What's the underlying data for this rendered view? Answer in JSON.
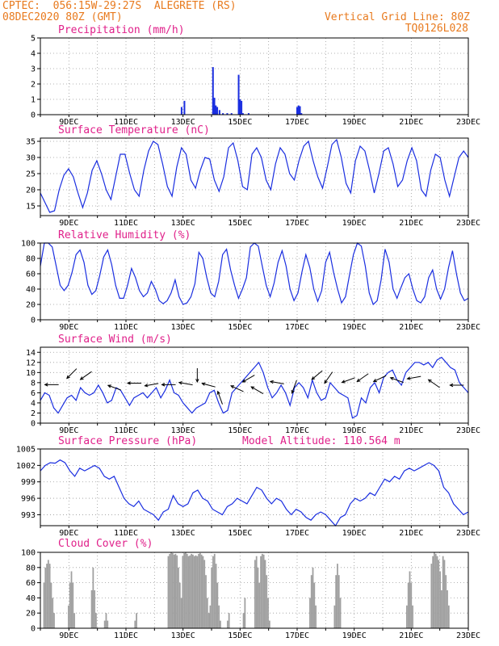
{
  "header": {
    "line1": "CPTEC:  056:15W-29:27S  ALEGRETE (RS)",
    "line2": "08DEC2020 80Z (GMT)",
    "right1": "Vertical Grid Line: 80Z",
    "right2": "TQ0126L028",
    "color": "#e87a1e"
  },
  "colors": {
    "title": "#e0208a",
    "series": "#1a2ee0",
    "cloud": "#a0a0a0",
    "grid": "#9a9a9a",
    "wind": "#000000"
  },
  "chart_data": [
    {
      "id": "precip",
      "type": "bar",
      "title": "Precipitation (mm/h)",
      "xlim": [
        0,
        15
      ],
      "ylim": [
        0,
        5
      ],
      "yticks": [
        "0",
        "1",
        "2",
        "3",
        "4",
        "5"
      ],
      "xticks": [
        "9DEC",
        "11DEC",
        "13DEC",
        "15DEC",
        "17DEC",
        "19DEC",
        "21DEC",
        "23DEC"
      ],
      "x": [
        4.95,
        5.05,
        6.05,
        6.1,
        6.15,
        6.2,
        6.28,
        6.4,
        6.55,
        6.7,
        6.95,
        7.0,
        7.05,
        7.1,
        7.3,
        9.0,
        9.05,
        9.1,
        9.15
      ],
      "values": [
        0.5,
        0.9,
        3.1,
        1.1,
        0.6,
        0.5,
        0.3,
        0.1,
        0.1,
        0.1,
        2.6,
        1.0,
        0.9,
        0.1,
        0.1,
        0.5,
        0.6,
        0.55,
        0.1
      ]
    },
    {
      "id": "temp",
      "type": "line",
      "title": "Surface Temperature (nC)",
      "xlim": [
        0,
        15
      ],
      "ylim": [
        12,
        36
      ],
      "yticks": [
        "15",
        "20",
        "25",
        "30",
        "35"
      ],
      "xticks": [
        "9DEC",
        "11DEC",
        "13DEC",
        "15DEC",
        "17DEC",
        "19DEC",
        "21DEC",
        "23DEC"
      ],
      "series": [
        {
          "values": [
            19,
            16,
            13,
            13.5,
            20,
            24.5,
            26.5,
            24,
            19,
            14.5,
            19,
            26,
            29,
            25,
            20,
            17,
            24,
            31,
            31,
            25,
            20,
            18,
            26,
            32,
            35,
            34,
            28,
            21,
            18,
            27,
            33,
            31,
            23,
            20.5,
            26,
            30,
            29.5,
            23,
            19.5,
            24,
            33,
            34.5,
            29,
            21,
            20,
            31,
            33,
            30,
            23,
            20,
            28,
            33,
            31,
            25,
            23,
            29,
            33.5,
            35,
            29,
            24,
            20.5,
            27,
            34,
            35.5,
            30,
            22,
            19,
            29,
            33.5,
            32,
            26,
            19,
            25,
            32,
            33,
            28,
            21,
            23,
            29,
            33,
            29,
            20,
            18,
            26,
            31,
            30,
            23,
            18,
            24,
            30,
            32,
            30
          ]
        }
      ]
    },
    {
      "id": "rh",
      "type": "line",
      "title": "Relative Humidity (%)",
      "xlim": [
        0,
        15
      ],
      "ylim": [
        0,
        100
      ],
      "yticks": [
        "0",
        "20",
        "40",
        "60",
        "80",
        "100"
      ],
      "xticks": [
        "9DEC",
        "11DEC",
        "13DEC",
        "15DEC",
        "17DEC",
        "19DEC",
        "21DEC",
        "23DEC"
      ],
      "series": [
        {
          "values": [
            70,
            100,
            100,
            95,
            70,
            45,
            38,
            45,
            62,
            85,
            91,
            75,
            45,
            33,
            38,
            58,
            82,
            91,
            72,
            45,
            28,
            28,
            45,
            67,
            55,
            38,
            30,
            35,
            50,
            40,
            25,
            21,
            25,
            35,
            52,
            30,
            20,
            22,
            30,
            47,
            88,
            80,
            55,
            35,
            30,
            50,
            85,
            92,
            65,
            45,
            28,
            40,
            55,
            95,
            100,
            96,
            70,
            45,
            30,
            48,
            75,
            90,
            70,
            40,
            25,
            35,
            62,
            85,
            68,
            40,
            24,
            38,
            75,
            88,
            62,
            40,
            22,
            30,
            58,
            85,
            100,
            96,
            70,
            35,
            20,
            25,
            52,
            92,
            75,
            40,
            28,
            42,
            55,
            60,
            40,
            25,
            22,
            30,
            55,
            65,
            40,
            27,
            40,
            68,
            90,
            60,
            35,
            25,
            28
          ]
        }
      ]
    },
    {
      "id": "wind",
      "type": "line",
      "title": "Surface Wind (m/s)",
      "xlim": [
        0,
        15
      ],
      "ylim": [
        0,
        15
      ],
      "yticks": [
        "0",
        "2",
        "4",
        "6",
        "8",
        "10",
        "12",
        "14"
      ],
      "xticks": [
        "9DEC",
        "11DEC",
        "13DEC",
        "15DEC",
        "17DEC",
        "19DEC",
        "21DEC",
        "23DEC"
      ],
      "series": [
        {
          "values": [
            4.5,
            6,
            5.5,
            3,
            2,
            3.5,
            5,
            5.5,
            4.5,
            7,
            6,
            5.5,
            6,
            7.5,
            6,
            4,
            4.5,
            7,
            6.5,
            5,
            3.5,
            5,
            5.5,
            6,
            5,
            6,
            7,
            5,
            6.5,
            8.5,
            6,
            5.5,
            4,
            3,
            2,
            3,
            3.5,
            4,
            6,
            6.5,
            4,
            2,
            2.5,
            6,
            7,
            8,
            9,
            10,
            11,
            12,
            10,
            7,
            5,
            6,
            7.5,
            6,
            3.5,
            7,
            8,
            7,
            5,
            8.5,
            6,
            4.5,
            5,
            8,
            7,
            6,
            5.5,
            5,
            1,
            1.5,
            5,
            4,
            7,
            8,
            6,
            9,
            10,
            10.5,
            8.5,
            7.5,
            10,
            11,
            12,
            12,
            11.5,
            12,
            11,
            12.5,
            13,
            12,
            11,
            10.5,
            8,
            7,
            6
          ]
        }
      ]
    },
    {
      "id": "pressure",
      "type": "line",
      "title": "Surface Pressure (hPa)",
      "subtitle": "Model Altitude: 110.564 m",
      "xlim": [
        0,
        15
      ],
      "ylim": [
        991,
        1005
      ],
      "yticks": [
        "993",
        "996",
        "999",
        "1002",
        "1005"
      ],
      "xticks": [
        "9DEC",
        "11DEC",
        "13DEC",
        "15DEC",
        "17DEC",
        "19DEC",
        "21DEC",
        "23DEC"
      ],
      "series": [
        {
          "values": [
            1001,
            1002,
            1002.5,
            1002.4,
            1003,
            1002.5,
            1001,
            1000,
            1001.5,
            1001,
            1001.5,
            1002,
            1001.5,
            1000,
            999.5,
            1000,
            998,
            996,
            995,
            994.5,
            995.5,
            994,
            993.5,
            993,
            992,
            993.5,
            994,
            996.5,
            995,
            994.5,
            995,
            997,
            997.5,
            996,
            995.5,
            994,
            993.5,
            993,
            994.5,
            995,
            996,
            995.5,
            995,
            996.5,
            998,
            997.5,
            996,
            995,
            996,
            995.5,
            994,
            993,
            994,
            993.5,
            992.5,
            992,
            993,
            993.5,
            993,
            992,
            991,
            992.5,
            993,
            995,
            996,
            995.5,
            996,
            997,
            996.5,
            998,
            999.5,
            999,
            1000,
            999.5,
            1001,
            1001.5,
            1001,
            1001.5,
            1002,
            1002.5,
            1002,
            1001,
            998,
            997,
            995,
            994,
            993,
            993.5
          ]
        }
      ]
    },
    {
      "id": "cloud",
      "type": "area",
      "title": "Cloud Cover (%)",
      "xlim": [
        0,
        15
      ],
      "ylim": [
        0,
        100
      ],
      "yticks": [
        "0",
        "20",
        "40",
        "60",
        "80",
        "100"
      ],
      "xticks": [
        "9DEC",
        "11DEC",
        "13DEC",
        "15DEC",
        "17DEC",
        "19DEC",
        "21DEC",
        "23DEC"
      ],
      "series": [
        {
          "values": [
            0,
            0,
            60,
            80,
            85,
            90,
            85,
            60,
            40,
            20,
            0,
            0,
            0,
            0,
            0,
            0,
            0,
            0,
            0,
            30,
            60,
            75,
            60,
            20,
            0,
            0,
            0,
            0,
            0,
            0,
            0,
            0,
            0,
            0,
            0,
            50,
            80,
            50,
            20,
            0,
            0,
            0,
            0,
            0,
            10,
            20,
            10,
            0,
            0,
            0,
            0,
            0,
            0,
            0,
            0,
            0,
            0,
            0,
            0,
            0,
            0,
            0,
            0,
            0,
            0,
            10,
            20,
            0,
            0,
            0,
            0,
            0,
            0,
            0,
            0,
            0,
            0,
            0,
            0,
            0,
            0,
            0,
            0,
            0,
            0,
            0,
            0,
            0,
            95,
            98,
            100,
            99,
            97,
            98,
            96,
            80,
            60,
            40,
            95,
            99,
            100,
            98,
            95,
            96,
            98,
            97,
            95,
            96,
            95,
            98,
            99,
            97,
            95,
            90,
            70,
            40,
            20,
            30,
            80,
            95,
            98,
            85,
            60,
            30,
            10,
            0,
            0,
            0,
            0,
            10,
            20,
            0,
            0,
            0,
            0,
            0,
            0,
            0,
            0,
            0,
            20,
            40,
            0,
            0,
            0,
            0,
            0,
            0,
            90,
            95,
            80,
            60,
            95,
            98,
            97,
            90,
            70,
            40,
            10,
            0,
            0,
            0,
            0,
            0,
            0,
            0,
            0,
            0,
            0,
            0,
            0,
            0,
            0,
            0,
            0,
            0,
            0,
            0,
            0,
            0,
            0,
            0,
            0,
            0,
            0,
            0,
            40,
            70,
            80,
            60,
            30,
            0,
            0,
            0,
            0,
            0,
            0,
            0,
            0,
            0,
            0,
            0,
            0,
            30,
            70,
            85,
            70,
            40,
            0,
            0,
            0,
            0,
            0,
            0,
            0,
            0,
            0,
            0,
            0,
            0,
            0,
            0,
            0,
            0,
            0,
            0,
            0,
            0,
            0,
            0,
            0,
            0,
            0,
            0,
            0,
            0,
            0,
            0,
            0,
            0,
            0,
            0,
            0,
            0,
            0,
            0,
            0,
            0,
            0,
            0,
            0,
            0,
            0,
            30,
            60,
            75,
            60,
            30,
            0,
            0,
            0,
            0,
            0,
            0,
            0,
            0,
            0,
            0,
            0,
            0,
            85,
            95,
            100,
            98,
            95,
            90,
            75,
            50,
            95,
            90,
            70,
            50,
            30,
            0,
            0,
            0,
            0,
            0,
            0,
            0,
            0,
            0,
            0,
            0,
            0,
            0
          ]
        }
      ]
    }
  ],
  "wind_vectors": [
    {
      "x": 0.4,
      "y": 7.6,
      "angle": 180
    },
    {
      "x": 1.1,
      "y": 9.8,
      "angle": 225
    },
    {
      "x": 1.6,
      "y": 9.4,
      "angle": 215
    },
    {
      "x": 2.6,
      "y": 7.0,
      "angle": 160
    },
    {
      "x": 3.3,
      "y": 7.9,
      "angle": 180
    },
    {
      "x": 3.9,
      "y": 7.6,
      "angle": 190
    },
    {
      "x": 4.5,
      "y": 7.6,
      "angle": 180
    },
    {
      "x": 5.1,
      "y": 7.8,
      "angle": 170
    },
    {
      "x": 5.5,
      "y": 9.5,
      "angle": 270
    },
    {
      "x": 5.9,
      "y": 7.5,
      "angle": 165
    },
    {
      "x": 6.3,
      "y": 5.0,
      "angle": 110
    },
    {
      "x": 6.9,
      "y": 6.8,
      "angle": 155
    },
    {
      "x": 7.3,
      "y": 8.8,
      "angle": 210
    },
    {
      "x": 7.6,
      "y": 6.5,
      "angle": 150
    },
    {
      "x": 8.3,
      "y": 8.0,
      "angle": 170
    },
    {
      "x": 8.9,
      "y": 7.2,
      "angle": 250
    },
    {
      "x": 9.7,
      "y": 9.5,
      "angle": 220
    },
    {
      "x": 10.1,
      "y": 9.0,
      "angle": 235
    },
    {
      "x": 10.8,
      "y": 8.5,
      "angle": 200
    },
    {
      "x": 11.3,
      "y": 9.0,
      "angle": 215
    },
    {
      "x": 11.9,
      "y": 8.8,
      "angle": 205
    },
    {
      "x": 12.5,
      "y": 8.5,
      "angle": 160
    },
    {
      "x": 13.1,
      "y": 9.0,
      "angle": 190
    },
    {
      "x": 13.8,
      "y": 7.8,
      "angle": 145
    },
    {
      "x": 14.6,
      "y": 7.5,
      "angle": 180
    }
  ]
}
